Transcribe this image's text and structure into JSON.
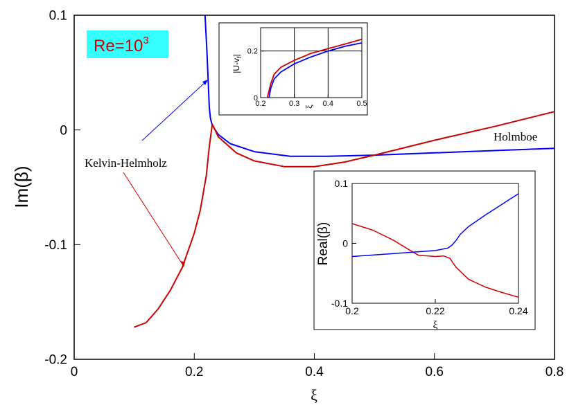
{
  "badge": {
    "text": "Re=10",
    "superscript": "3",
    "background": "#33ffff",
    "color": "#cc0000"
  },
  "chart_data": [
    {
      "type": "line",
      "name": "main",
      "xlabel": "ξ",
      "ylabel": "Im(β)",
      "xlim": [
        0,
        0.8
      ],
      "ylim": [
        -0.2,
        0.1
      ],
      "x_ticks": [
        "0",
        "0.2",
        "0.4",
        "0.6",
        "0.8"
      ],
      "y_ticks": [
        "-0.2",
        "-0.1",
        "0",
        "0.1"
      ],
      "grid": false,
      "series": [
        {
          "color": "#0000ff",
          "x": [
            0.218,
            0.221,
            0.223,
            0.225,
            0.227,
            0.23,
            0.24,
            0.26,
            0.3,
            0.36,
            0.42,
            0.5,
            0.6,
            0.7,
            0.8
          ],
          "y": [
            0.1,
            0.07,
            0.045,
            0.02,
            0.01,
            0.004,
            -0.004,
            -0.012,
            -0.019,
            -0.023,
            -0.023,
            -0.022,
            -0.02,
            -0.018,
            -0.016
          ]
        },
        {
          "color": "#cc0000",
          "x": [
            0.1,
            0.12,
            0.14,
            0.16,
            0.18,
            0.2,
            0.21,
            0.22,
            0.225,
            0.23,
            0.24,
            0.27,
            0.3,
            0.35,
            0.4,
            0.45,
            0.5,
            0.6,
            0.7,
            0.8
          ],
          "y": [
            -0.172,
            -0.168,
            -0.156,
            -0.14,
            -0.12,
            -0.09,
            -0.07,
            -0.04,
            -0.015,
            0.005,
            -0.006,
            -0.02,
            -0.027,
            -0.032,
            -0.032,
            -0.028,
            -0.022,
            -0.009,
            0.003,
            0.016
          ]
        }
      ],
      "annotations": [
        {
          "text": "Kelvin-Helmholz",
          "color": "#b36b00"
        },
        {
          "text": "Holmboe",
          "color": "#b36b00"
        }
      ]
    },
    {
      "type": "line",
      "name": "inset-top",
      "xlabel": "ξ",
      "ylabel": "|U-v",
      "ylabel_sub": "f",
      "ylabel_end": "|",
      "xlim": [
        0.2,
        0.5
      ],
      "ylim": [
        0,
        0.3
      ],
      "x_ticks": [
        "0.2",
        "0.3",
        "0.4",
        "0.5"
      ],
      "y_ticks": [
        "0",
        "0.2"
      ],
      "grid": true,
      "series": [
        {
          "color": "#cc0000",
          "x": [
            0.22,
            0.225,
            0.23,
            0.24,
            0.26,
            0.3,
            0.35,
            0.4,
            0.45,
            0.5
          ],
          "y": [
            0,
            0.03,
            0.06,
            0.1,
            0.13,
            0.16,
            0.19,
            0.21,
            0.23,
            0.25
          ]
        },
        {
          "color": "#0000ff",
          "x": [
            0.225,
            0.23,
            0.24,
            0.26,
            0.3,
            0.35,
            0.4,
            0.45,
            0.5
          ],
          "y": [
            0,
            0.04,
            0.08,
            0.11,
            0.145,
            0.175,
            0.2,
            0.22,
            0.235
          ]
        }
      ]
    },
    {
      "type": "line",
      "name": "inset-bottom",
      "xlabel": "ξ",
      "ylabel": "Real(β)",
      "xlim": [
        0.2,
        0.24
      ],
      "ylim": [
        -0.1,
        0.1
      ],
      "x_ticks": [
        "0.2",
        "0.22",
        "0.24"
      ],
      "y_ticks": [
        "-0.1",
        "0",
        "0.1"
      ],
      "grid": false,
      "series": [
        {
          "color": "#cc0000",
          "x": [
            0.2,
            0.205,
            0.21,
            0.214,
            0.216,
            0.22,
            0.222,
            0.2235,
            0.225,
            0.228,
            0.232,
            0.236,
            0.24
          ],
          "y": [
            0.033,
            0.022,
            0.005,
            -0.012,
            -0.02,
            -0.022,
            -0.021,
            -0.025,
            -0.04,
            -0.06,
            -0.073,
            -0.082,
            -0.09
          ]
        },
        {
          "color": "#0000ff",
          "x": [
            0.2,
            0.21,
            0.22,
            0.223,
            0.224,
            0.225,
            0.226,
            0.228,
            0.232,
            0.236,
            0.24
          ],
          "y": [
            -0.022,
            -0.017,
            -0.012,
            -0.008,
            -0.003,
            0.005,
            0.015,
            0.028,
            0.047,
            0.065,
            0.083
          ]
        }
      ]
    }
  ]
}
